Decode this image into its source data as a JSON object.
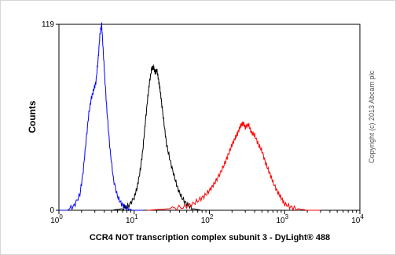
{
  "chart_data": {
    "type": "line",
    "xlabel": "CCR4 NOT transcription complex subunit 3 - DyLight® 488",
    "ylabel": "Counts",
    "x_scale": "log",
    "xlim": [
      1,
      10000
    ],
    "ylim": [
      0,
      119
    ],
    "y_ticks": [
      "0",
      "119"
    ],
    "x_ticks": [
      {
        "base": "10",
        "exp": "0"
      },
      {
        "base": "10",
        "exp": "1"
      },
      {
        "base": "10",
        "exp": "2"
      },
      {
        "base": "10",
        "exp": "3"
      },
      {
        "base": "10",
        "exp": "4"
      }
    ],
    "grid": false,
    "series": [
      {
        "color": "#0000ff",
        "x": [
          1.0,
          1.3,
          1.6,
          1.9,
          2.1,
          2.3,
          2.5,
          2.7,
          2.9,
          3.1,
          3.3,
          3.5,
          3.7,
          3.9,
          4.1,
          4.4,
          4.8,
          5.3,
          6.0,
          6.8,
          7.6,
          8.5,
          9.5,
          11,
          13
        ],
        "y": [
          0,
          0,
          3,
          10,
          25,
          45,
          62,
          72,
          77,
          82,
          95,
          112,
          119,
          100,
          82,
          60,
          38,
          20,
          9,
          4,
          2,
          1,
          0,
          0,
          0
        ]
      },
      {
        "color": "#000000",
        "x": [
          5,
          7,
          8.5,
          10,
          11,
          12,
          13,
          14,
          15,
          16,
          17,
          18,
          19,
          20,
          21,
          22,
          23,
          25,
          27,
          30,
          34,
          38,
          43,
          50,
          60,
          80
        ],
        "y": [
          0,
          1,
          3,
          8,
          15,
          25,
          38,
          55,
          70,
          82,
          90,
          92,
          88,
          90,
          84,
          78,
          70,
          55,
          42,
          32,
          22,
          14,
          8,
          4,
          1,
          0
        ]
      },
      {
        "color": "#ff0000",
        "x": [
          15,
          30,
          45,
          60,
          75,
          90,
          105,
          120,
          140,
          160,
          180,
          200,
          220,
          240,
          260,
          280,
          300,
          330,
          360,
          400,
          450,
          500,
          560,
          630,
          700,
          800,
          900,
          1000,
          1200,
          1500,
          2000,
          3000
        ],
        "y": [
          0,
          1,
          2,
          4,
          7,
          10,
          14,
          18,
          24,
          30,
          36,
          42,
          46,
          50,
          54,
          56,
          53,
          55,
          50,
          48,
          42,
          38,
          30,
          24,
          18,
          12,
          8,
          4,
          2,
          1,
          0,
          0
        ]
      }
    ]
  },
  "copyright": "Copyright (c) 2013 Abcam plc"
}
